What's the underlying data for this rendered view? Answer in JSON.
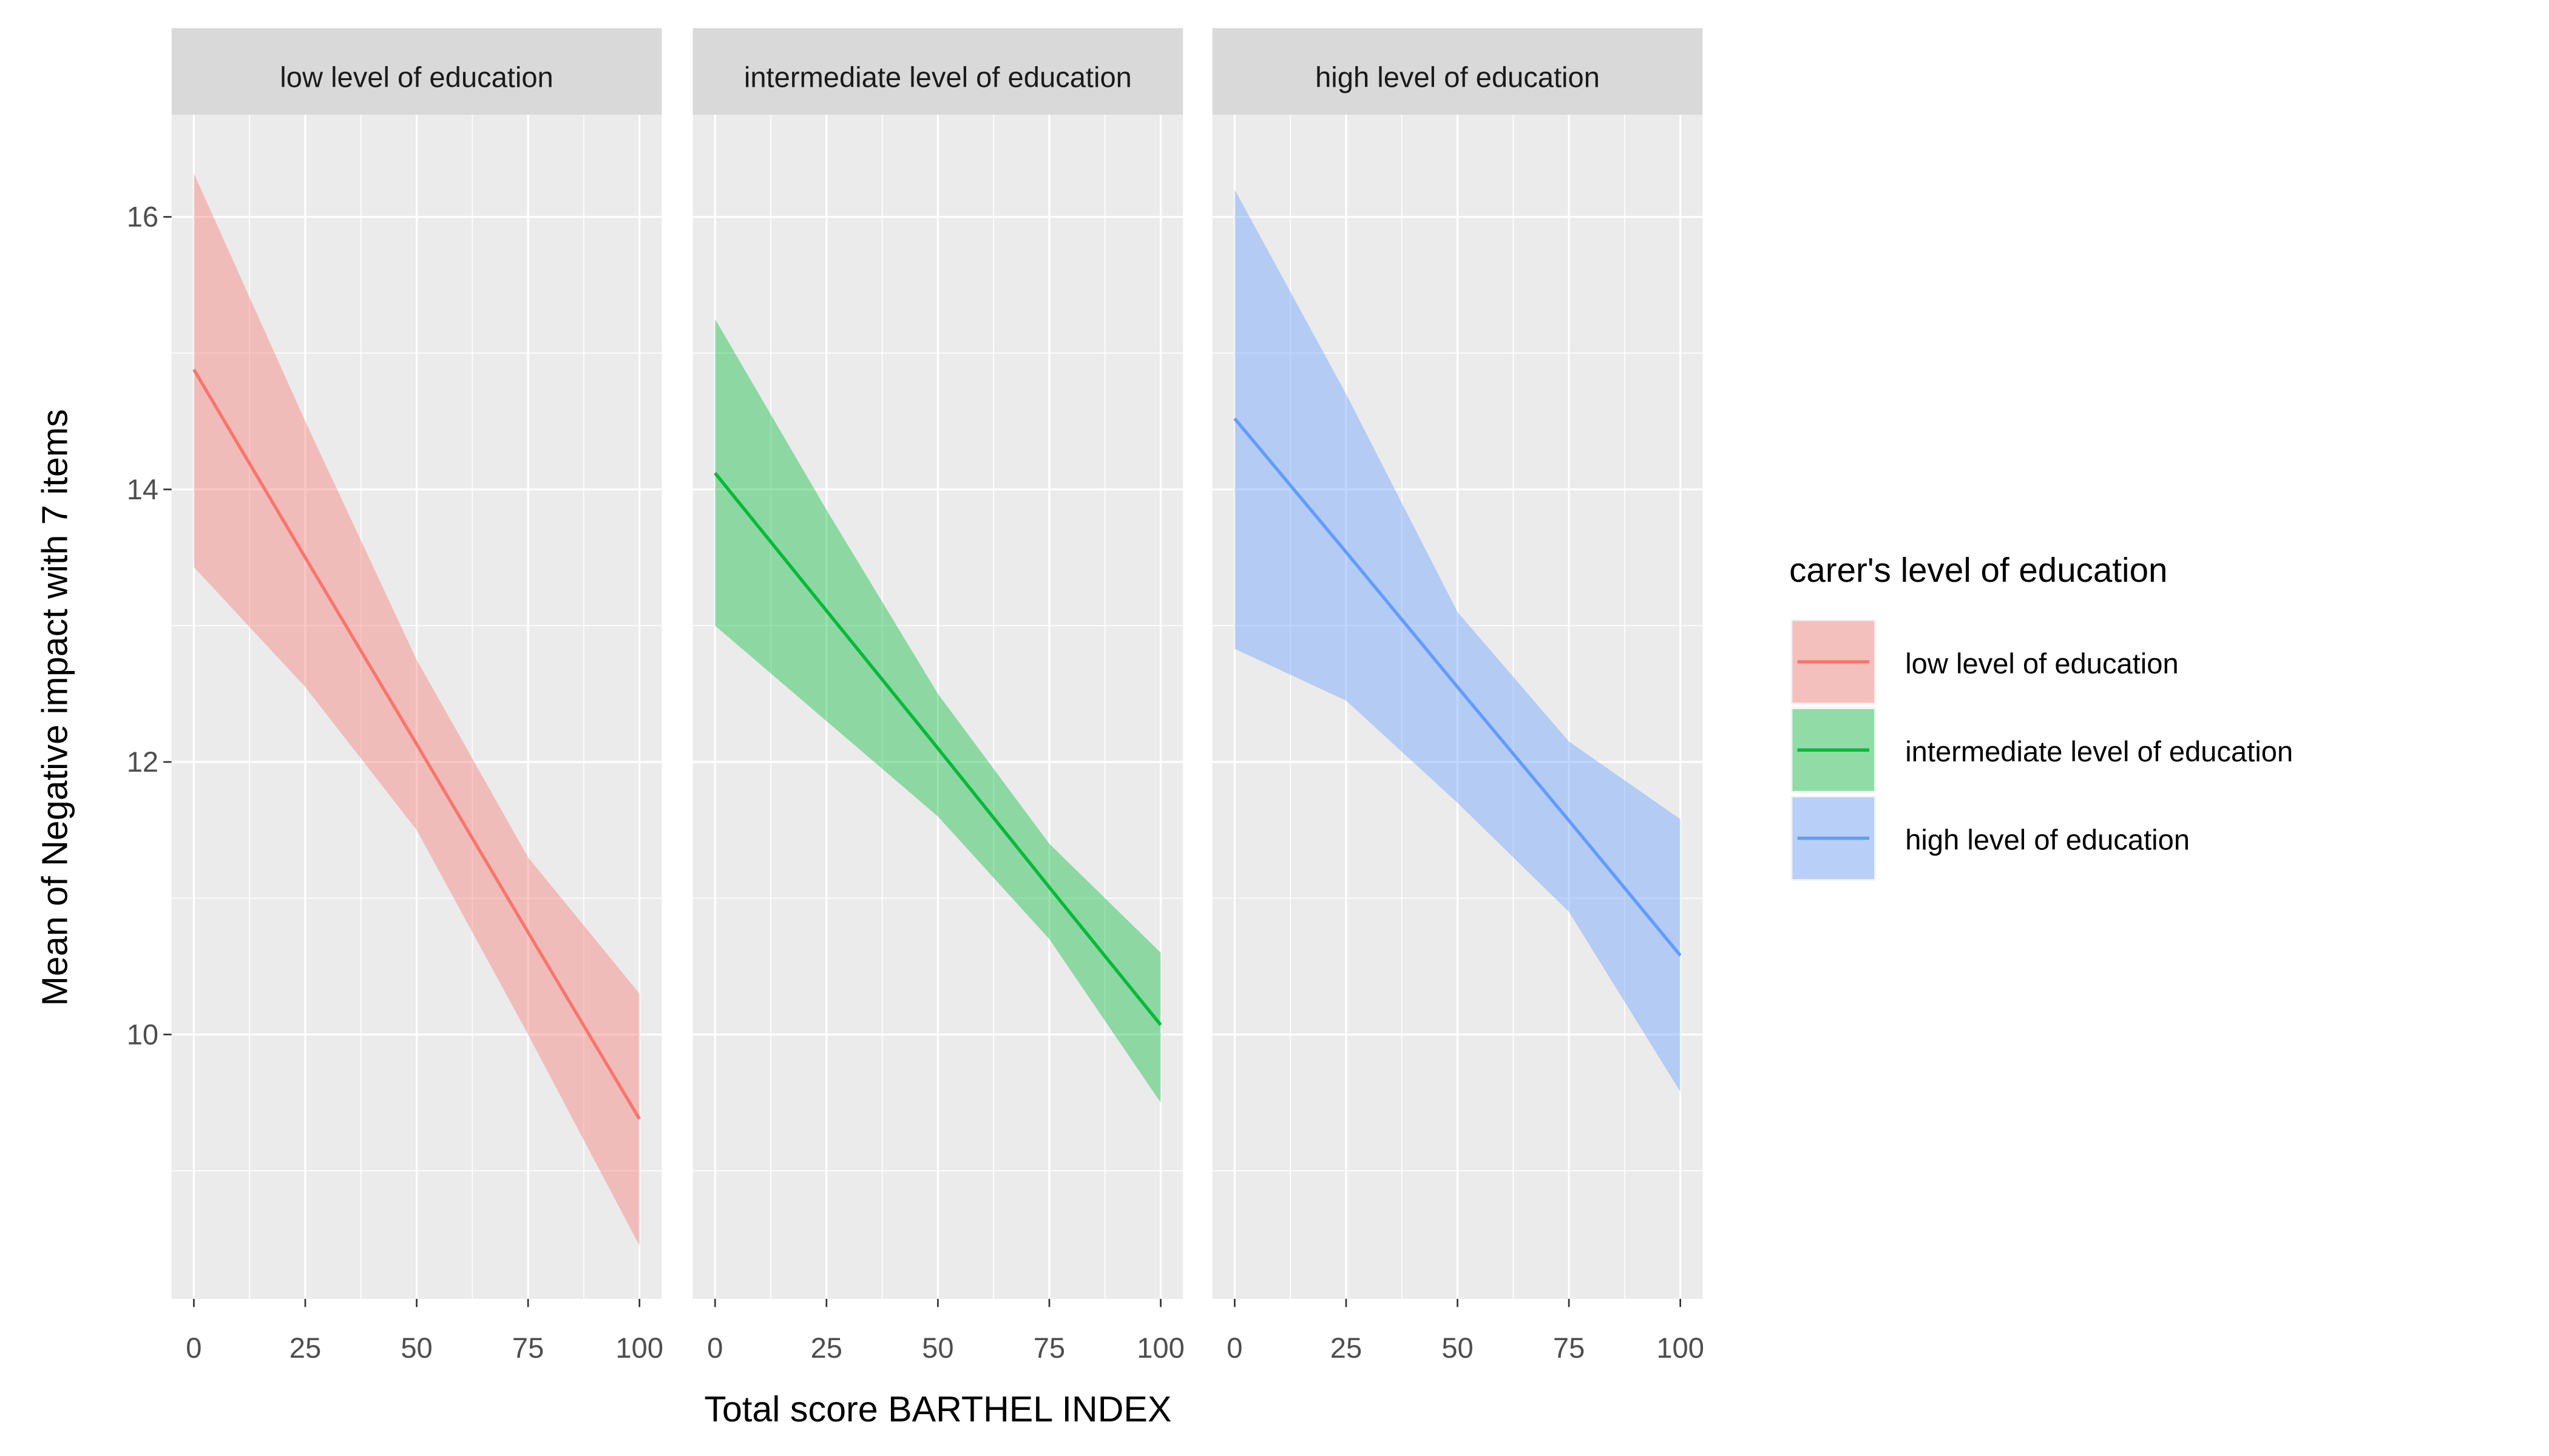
{
  "chart_data": {
    "type": "line",
    "facet_by": "carer's level of education",
    "xlabel": "Total score BARTHEL INDEX",
    "ylabel": "Mean of Negative impact with 7 items",
    "xlim": [
      -5,
      105
    ],
    "ylim": [
      8.06,
      16.75
    ],
    "x_ticks": [
      "0",
      "25",
      "50",
      "75",
      "100"
    ],
    "y_ticks": [
      "10",
      "12",
      "14",
      "16"
    ],
    "grid": true,
    "legend": {
      "title": "carer's level of education",
      "placement": "right",
      "entries": [
        "low level of education",
        "intermediate level of education",
        "high level of education"
      ]
    },
    "panels": [
      {
        "strip": "low level of education",
        "color": "#F8766D",
        "x": [
          0,
          25,
          50,
          75,
          100
        ],
        "fit": [
          14.88,
          13.5,
          12.13,
          10.75,
          9.38
        ],
        "upper": [
          16.32,
          14.5,
          12.75,
          11.3,
          10.3
        ],
        "lower": [
          13.43,
          12.55,
          11.5,
          10.0,
          8.45
        ]
      },
      {
        "strip": "intermediate level of education",
        "color": "#00BA38",
        "x": [
          0,
          25,
          50,
          75,
          100
        ],
        "fit": [
          14.12,
          13.11,
          12.1,
          11.08,
          10.07
        ],
        "upper": [
          15.25,
          13.85,
          12.5,
          11.4,
          10.6
        ],
        "lower": [
          13.0,
          12.3,
          11.6,
          10.7,
          9.5
        ]
      },
      {
        "strip": "high level of education",
        "color": "#619CFF",
        "x": [
          0,
          25,
          50,
          75,
          100
        ],
        "fit": [
          14.52,
          13.54,
          12.55,
          11.57,
          10.58
        ],
        "upper": [
          16.2,
          14.7,
          13.1,
          12.15,
          11.58
        ],
        "lower": [
          12.83,
          12.45,
          11.7,
          10.9,
          9.58
        ]
      }
    ]
  }
}
